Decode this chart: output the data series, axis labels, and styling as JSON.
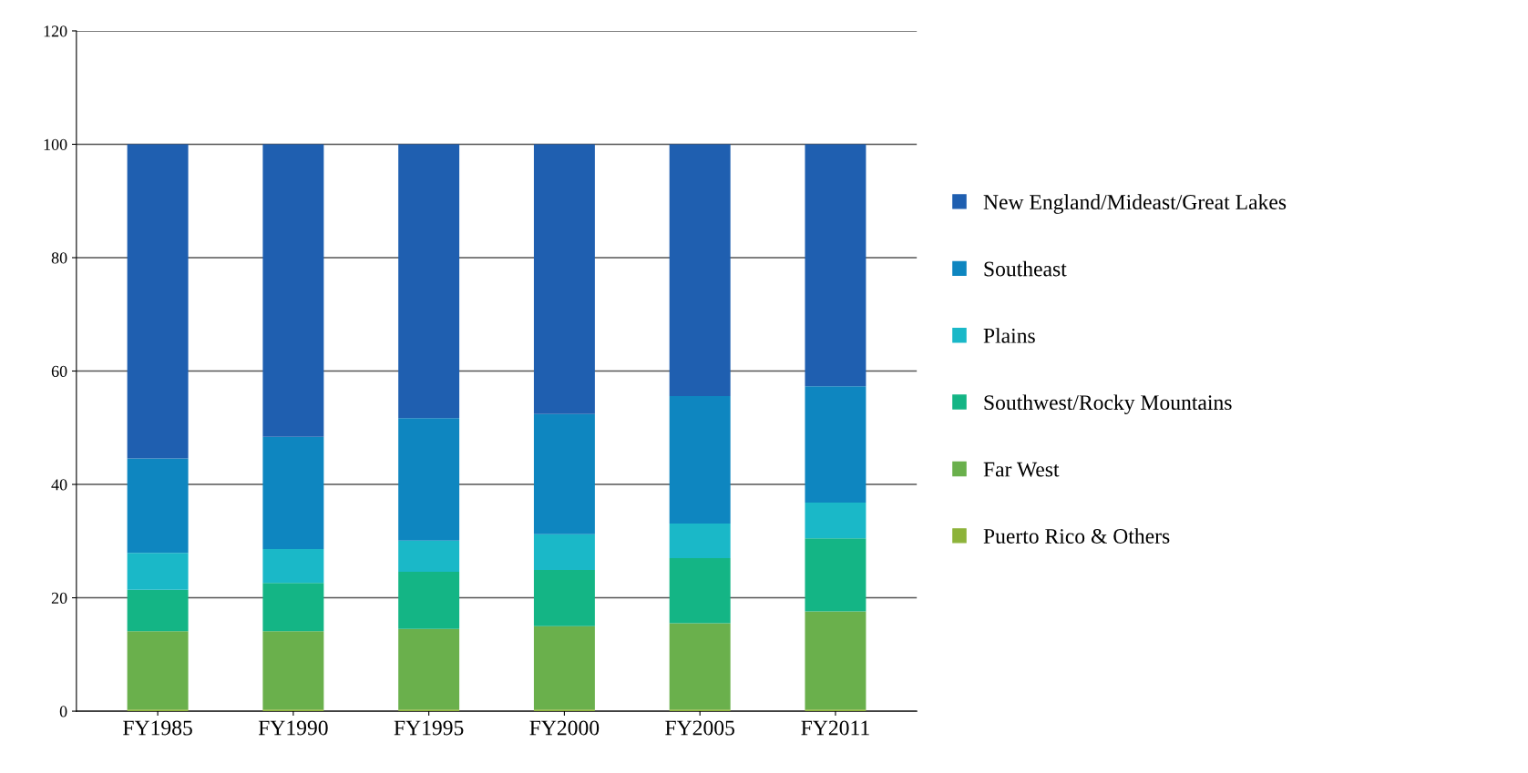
{
  "chart_data": {
    "type": "bar",
    "stacked": true,
    "categories": [
      "FY1985",
      "FY1990",
      "FY1995",
      "FY2000",
      "FY2005",
      "FY2011"
    ],
    "series": [
      {
        "name": "Puerto Rico & Others",
        "color": "#8db33a",
        "values": [
          0.3,
          0.3,
          0.3,
          0.3,
          0.3,
          0.3
        ]
      },
      {
        "name": "Far West",
        "color": "#6ab04c",
        "values": [
          13.8,
          13.8,
          14.2,
          14.7,
          15.2,
          17.3
        ]
      },
      {
        "name": "Southwest/Rocky Mountains",
        "color": "#14b585",
        "values": [
          7.3,
          8.5,
          10.1,
          9.9,
          11.5,
          12.9
        ]
      },
      {
        "name": "Plains",
        "color": "#1ab8c8",
        "values": [
          6.5,
          6.0,
          5.5,
          6.3,
          6.1,
          6.3
        ]
      },
      {
        "name": "Southeast",
        "color": "#0e86c0",
        "values": [
          16.7,
          19.8,
          21.6,
          21.2,
          22.5,
          20.5
        ]
      },
      {
        "name": "New England/Mideast/Great Lakes",
        "color": "#1f5fb0",
        "values": [
          55.4,
          51.6,
          48.3,
          47.6,
          44.4,
          42.7
        ]
      }
    ],
    "ylim": [
      0,
      120
    ],
    "yticks": [
      0,
      20,
      40,
      60,
      80,
      100,
      120
    ],
    "grid": "y",
    "legend": "right"
  }
}
